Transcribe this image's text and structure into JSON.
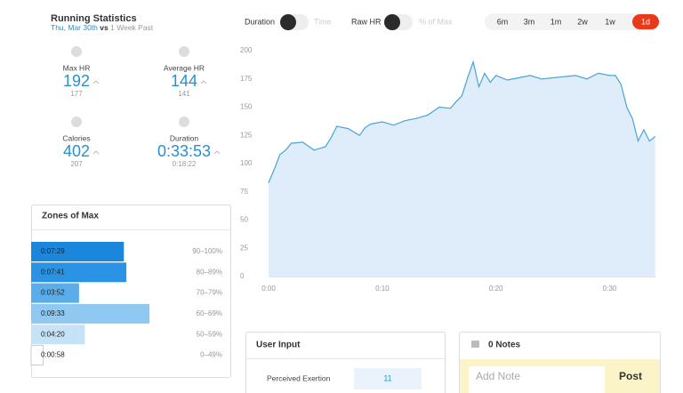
{
  "header": {
    "title": "Running Statistics",
    "date": "Thu, Mar 30th",
    "vs": "vs",
    "compare": "1 Week Past"
  },
  "toggles": [
    {
      "label": "Duration",
      "option": "Time"
    },
    {
      "label": "Raw HR",
      "option": "% of Max"
    }
  ],
  "ranges": {
    "options": [
      "6m",
      "3m",
      "1m",
      "2w",
      "1w",
      "1d"
    ],
    "active": 5,
    "active_color": "#e8391b"
  },
  "stats": [
    {
      "label": "Max HR",
      "value": 192,
      "previous": 177
    },
    {
      "label": "Average HR",
      "value": 144,
      "previous": 141
    },
    {
      "label": "Calories",
      "value": 402,
      "previous": 207
    },
    {
      "label": "Duration",
      "value": "0:33:53",
      "previous": "0:18:22"
    }
  ],
  "zones": {
    "type": "bar",
    "title": "Zones of Max",
    "categories": [
      "90–100%",
      "80–89%",
      "70–79%",
      "60–69%",
      "50–59%",
      "0–49%"
    ],
    "values": [
      449,
      461,
      232,
      573,
      260,
      58
    ],
    "value_labels": [
      "0:07:29",
      "0:07:41",
      "0:03:52",
      "0:09:33",
      "0:04:20",
      "0:00:58"
    ],
    "xlim": [
      0,
      960
    ],
    "colors": [
      "#1a86dc",
      "#2b93e3",
      "#5badea",
      "#8fc8f0",
      "#c6e2f6",
      "#ffffff"
    ]
  },
  "chart_data": {
    "type": "line",
    "x": [
      0,
      0.5,
      1,
      1.5,
      2,
      3,
      4,
      5,
      5.5,
      6,
      7,
      8,
      8.5,
      9,
      10,
      11,
      12,
      13,
      14,
      15,
      16,
      16.5,
      17,
      17.5,
      18,
      18.5,
      19,
      19.5,
      20,
      21,
      22,
      23,
      24,
      25,
      26,
      27,
      28,
      29,
      30,
      30.5,
      31,
      31.5,
      32,
      32.5,
      33,
      33.5,
      34
    ],
    "series": [
      {
        "color": "#4aa3d8",
        "values": [
          83,
          95,
          108,
          112,
          118,
          119,
          112,
          115,
          123,
          133,
          131,
          125,
          132,
          135,
          137,
          134,
          138,
          140,
          143,
          150,
          149,
          155,
          160,
          176,
          190,
          168,
          180,
          172,
          178,
          174,
          176,
          178,
          175,
          176,
          177,
          178,
          175,
          180,
          178,
          178,
          170,
          150,
          140,
          120,
          130,
          120,
          124
        ]
      }
    ],
    "fill": "#deedf9",
    "xlim": [
      0,
      34.1
    ],
    "ylim": [
      0,
      200
    ],
    "yticks": [
      0,
      25,
      50,
      75,
      100,
      125,
      150,
      175,
      200
    ],
    "xticks": [
      {
        "value": 0,
        "label": "0:00"
      },
      {
        "value": 10,
        "label": "0:10"
      },
      {
        "value": 20,
        "label": "0:20"
      },
      {
        "value": 30,
        "label": "0:30"
      }
    ],
    "grid": false
  },
  "user_input": {
    "title": "User Input",
    "fields": [
      {
        "label": "Perceived Exertion",
        "value": 11
      }
    ]
  },
  "notes": {
    "title": "0 Notes",
    "placeholder": "Add Note",
    "button": "Post"
  }
}
